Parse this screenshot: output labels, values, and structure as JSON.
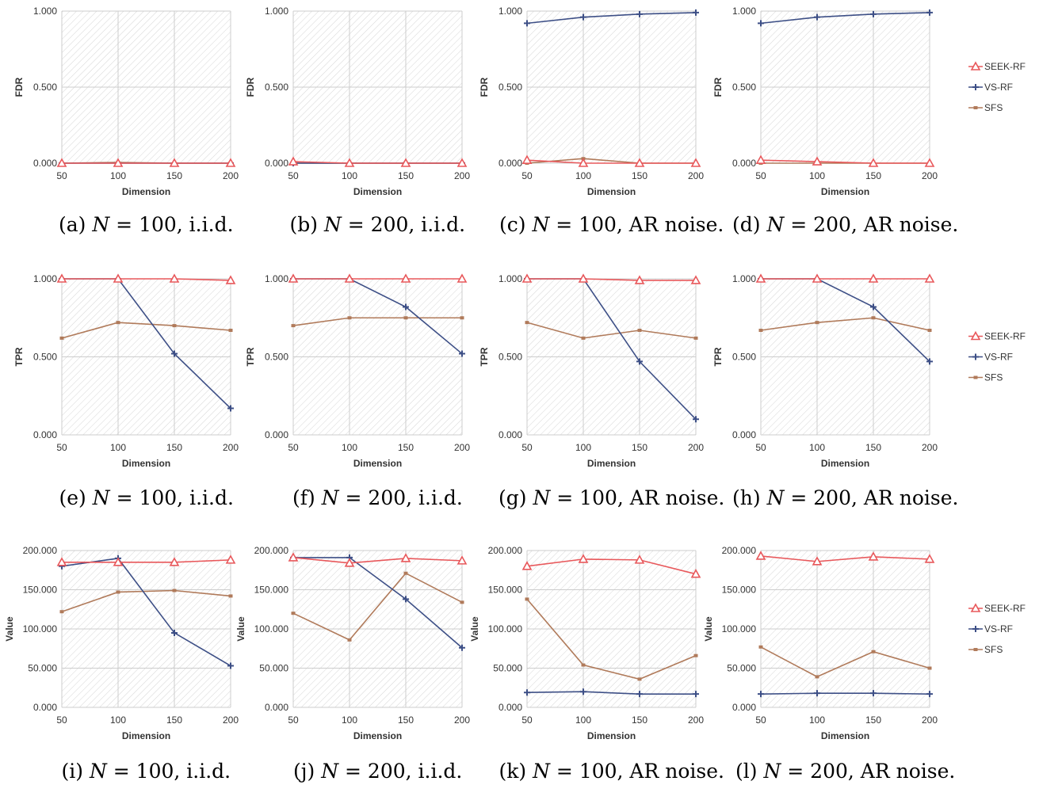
{
  "series_styles": [
    {
      "name": "SEEK-RF",
      "color": "#e8585b",
      "marker": "triangle"
    },
    {
      "name": "VS-RF",
      "color": "#3d4f86",
      "marker": "plus"
    },
    {
      "name": "SFS",
      "color": "#b07a5a",
      "marker": "square"
    }
  ],
  "colors": {
    "grid": "#cccccc",
    "hatch": "#d6d6d6",
    "text": "#333333"
  },
  "legend_labels": [
    "SEEK-RF",
    "VS-RF",
    "SFS"
  ],
  "chart_data": [
    {
      "type": "line",
      "caption_prefix": "(a)",
      "caption_n": "N",
      "caption_rest": "= 100, i.i.d.",
      "x": [
        50,
        100,
        150,
        200
      ],
      "xlabel": "Dimension",
      "ylabel": "FDR",
      "ylim": [
        0,
        1
      ],
      "yticks": [
        "0.000",
        "0.500",
        "1.000"
      ],
      "series": [
        {
          "name": "SEEK-RF",
          "values": [
            0.0,
            0.0,
            0.0,
            0.0
          ]
        },
        {
          "name": "VS-RF",
          "values": [
            0.0,
            0.0,
            0.0,
            0.0
          ]
        },
        {
          "name": "SFS",
          "values": [
            0.0,
            0.005,
            0.0,
            0.0
          ]
        }
      ]
    },
    {
      "type": "line",
      "caption_prefix": "(b)",
      "caption_n": "N",
      "caption_rest": "= 200, i.i.d.",
      "x": [
        50,
        100,
        150,
        200
      ],
      "xlabel": "Dimension",
      "ylabel": "FDR",
      "ylim": [
        0,
        1
      ],
      "yticks": [
        "0.000",
        "0.500",
        "1.000"
      ],
      "series": [
        {
          "name": "SEEK-RF",
          "values": [
            0.01,
            0.0,
            0.0,
            0.0
          ]
        },
        {
          "name": "VS-RF",
          "values": [
            0.0,
            0.0,
            0.0,
            0.0
          ]
        },
        {
          "name": "SFS",
          "values": [
            0.0,
            0.0,
            0.0,
            0.0
          ]
        }
      ]
    },
    {
      "type": "line",
      "caption_prefix": "(c)",
      "caption_n": "N",
      "caption_rest": "= 100, AR noise.",
      "x": [
        50,
        100,
        150,
        200
      ],
      "xlabel": "Dimension",
      "ylabel": "FDR",
      "ylim": [
        0,
        1
      ],
      "yticks": [
        "0.000",
        "0.500",
        "1.000"
      ],
      "series": [
        {
          "name": "SEEK-RF",
          "values": [
            0.02,
            0.0,
            0.0,
            0.0
          ]
        },
        {
          "name": "VS-RF",
          "values": [
            0.92,
            0.96,
            0.98,
            0.99
          ]
        },
        {
          "name": "SFS",
          "values": [
            0.0,
            0.03,
            0.0,
            0.0
          ]
        }
      ]
    },
    {
      "type": "line",
      "caption_prefix": "(d)",
      "caption_n": "N",
      "caption_rest": "= 200, AR noise.",
      "x": [
        50,
        100,
        150,
        200
      ],
      "xlabel": "Dimension",
      "ylabel": "FDR",
      "ylim": [
        0,
        1
      ],
      "yticks": [
        "0.000",
        "0.500",
        "1.000"
      ],
      "series": [
        {
          "name": "SEEK-RF",
          "values": [
            0.02,
            0.01,
            0.0,
            0.0
          ]
        },
        {
          "name": "VS-RF",
          "values": [
            0.92,
            0.96,
            0.98,
            0.99
          ]
        },
        {
          "name": "SFS",
          "values": [
            0.0,
            0.0,
            0.0,
            0.0
          ]
        }
      ],
      "legend": "right"
    },
    {
      "type": "line",
      "caption_prefix": "(e)",
      "caption_n": "N",
      "caption_rest": "= 100, i.i.d.",
      "x": [
        50,
        100,
        150,
        200
      ],
      "xlabel": "Dimension",
      "ylabel": "TPR",
      "ylim": [
        0,
        1
      ],
      "yticks": [
        "0.000",
        "0.500",
        "1.000"
      ],
      "series": [
        {
          "name": "SEEK-RF",
          "values": [
            1.0,
            1.0,
            1.0,
            0.99
          ]
        },
        {
          "name": "VS-RF",
          "values": [
            1.0,
            1.0,
            0.52,
            0.17
          ]
        },
        {
          "name": "SFS",
          "values": [
            0.62,
            0.72,
            0.7,
            0.67
          ]
        }
      ]
    },
    {
      "type": "line",
      "caption_prefix": "(f)",
      "caption_n": "N",
      "caption_rest": "= 200, i.i.d.",
      "x": [
        50,
        100,
        150,
        200
      ],
      "xlabel": "Dimension",
      "ylabel": "TPR",
      "ylim": [
        0,
        1
      ],
      "yticks": [
        "0.000",
        "0.500",
        "1.000"
      ],
      "series": [
        {
          "name": "SEEK-RF",
          "values": [
            1.0,
            1.0,
            1.0,
            1.0
          ]
        },
        {
          "name": "VS-RF",
          "values": [
            1.0,
            1.0,
            0.82,
            0.52
          ]
        },
        {
          "name": "SFS",
          "values": [
            0.7,
            0.75,
            0.75,
            0.75
          ]
        }
      ]
    },
    {
      "type": "line",
      "caption_prefix": "(g)",
      "caption_n": "N",
      "caption_rest": "= 100, AR noise.",
      "x": [
        50,
        100,
        150,
        200
      ],
      "xlabel": "Dimension",
      "ylabel": "TPR",
      "ylim": [
        0,
        1
      ],
      "yticks": [
        "0.000",
        "0.500",
        "1.000"
      ],
      "series": [
        {
          "name": "SEEK-RF",
          "values": [
            1.0,
            1.0,
            0.99,
            0.99
          ]
        },
        {
          "name": "VS-RF",
          "values": [
            1.0,
            1.0,
            0.47,
            0.1
          ]
        },
        {
          "name": "SFS",
          "values": [
            0.72,
            0.62,
            0.67,
            0.62
          ]
        }
      ]
    },
    {
      "type": "line",
      "caption_prefix": "(h)",
      "caption_n": "N",
      "caption_rest": "= 200, AR noise.",
      "x": [
        50,
        100,
        150,
        200
      ],
      "xlabel": "Dimension",
      "ylabel": "TPR",
      "ylim": [
        0,
        1
      ],
      "yticks": [
        "0.000",
        "0.500",
        "1.000"
      ],
      "series": [
        {
          "name": "SEEK-RF",
          "values": [
            1.0,
            1.0,
            1.0,
            1.0
          ]
        },
        {
          "name": "VS-RF",
          "values": [
            1.0,
            1.0,
            0.82,
            0.47
          ]
        },
        {
          "name": "SFS",
          "values": [
            0.67,
            0.72,
            0.75,
            0.67
          ]
        }
      ],
      "legend": "right"
    },
    {
      "type": "line",
      "caption_prefix": "(i)",
      "caption_n": "N",
      "caption_rest": "= 100, i.i.d.",
      "x": [
        50,
        100,
        150,
        200
      ],
      "xlabel": "Dimension",
      "ylabel": "Value",
      "ylim": [
        0,
        200
      ],
      "yticks": [
        "0.000",
        "50.000",
        "100.000",
        "150.000",
        "200.000"
      ],
      "series": [
        {
          "name": "SEEK-RF",
          "values": [
            185,
            185,
            185,
            188
          ]
        },
        {
          "name": "VS-RF",
          "values": [
            180,
            190,
            95,
            53
          ]
        },
        {
          "name": "SFS",
          "values": [
            122,
            147,
            149,
            142
          ]
        }
      ]
    },
    {
      "type": "line",
      "caption_prefix": "(j)",
      "caption_n": "N",
      "caption_rest": "= 200, i.i.d.",
      "x": [
        50,
        100,
        150,
        200
      ],
      "xlabel": "Dimension",
      "ylabel": "Value",
      "ylim": [
        0,
        200
      ],
      "yticks": [
        "0.000",
        "50.000",
        "100.000",
        "150.000",
        "200.000"
      ],
      "series": [
        {
          "name": "SEEK-RF",
          "values": [
            191,
            184,
            190,
            187
          ]
        },
        {
          "name": "VS-RF",
          "values": [
            191,
            191,
            138,
            76
          ]
        },
        {
          "name": "SFS",
          "values": [
            120,
            86,
            171,
            134
          ]
        }
      ]
    },
    {
      "type": "line",
      "caption_prefix": "(k)",
      "caption_n": "N",
      "caption_rest": "= 100, AR noise.",
      "x": [
        50,
        100,
        150,
        200
      ],
      "xlabel": "Dimension",
      "ylabel": "Value",
      "ylim": [
        0,
        200
      ],
      "yticks": [
        "0.000",
        "50.000",
        "100.000",
        "150.000",
        "200.000"
      ],
      "series": [
        {
          "name": "SEEK-RF",
          "values": [
            180,
            189,
            188,
            170
          ]
        },
        {
          "name": "VS-RF",
          "values": [
            19,
            20,
            17,
            17
          ]
        },
        {
          "name": "SFS",
          "values": [
            138,
            54,
            36,
            66
          ]
        }
      ]
    },
    {
      "type": "line",
      "caption_prefix": "(l)",
      "caption_n": "N",
      "caption_rest": "= 200, AR noise.",
      "x": [
        50,
        100,
        150,
        200
      ],
      "xlabel": "Dimension",
      "ylabel": "Value",
      "ylim": [
        0,
        200
      ],
      "yticks": [
        "0.000",
        "50.000",
        "100.000",
        "150.000",
        "200.000"
      ],
      "series": [
        {
          "name": "SEEK-RF",
          "values": [
            193,
            186,
            192,
            189
          ]
        },
        {
          "name": "VS-RF",
          "values": [
            17,
            18,
            18,
            17
          ]
        },
        {
          "name": "SFS",
          "values": [
            77,
            39,
            71,
            50
          ]
        }
      ],
      "legend": "right"
    }
  ]
}
